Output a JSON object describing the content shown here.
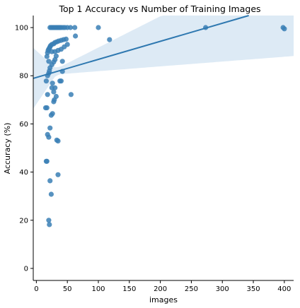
{
  "chart_data": {
    "type": "scatter",
    "title": "Top 1 Accuracy vs Number of Training Images",
    "xlabel": "images",
    "ylabel": "Accuracy (%)",
    "xlim": [
      -5,
      415
    ],
    "ylim": [
      -5,
      105
    ],
    "xticks": [
      0,
      50,
      100,
      150,
      200,
      250,
      300,
      350,
      400
    ],
    "yticks": [
      0,
      20,
      40,
      60,
      80,
      100
    ],
    "grid": false,
    "point_color": "#3a7fb5",
    "line_color": "#2e78b0",
    "band_color": "#c6dcef",
    "regression": {
      "intercept": 79.3,
      "slope": 0.075
    },
    "points": [
      [
        16,
        44.5
      ],
      [
        17,
        44.5
      ],
      [
        15,
        66.7
      ],
      [
        17,
        66.7
      ],
      [
        16,
        77.8
      ],
      [
        18,
        72.2
      ],
      [
        18,
        55.6
      ],
      [
        20,
        54.5
      ],
      [
        20,
        20
      ],
      [
        21,
        18.2
      ],
      [
        22,
        36.4
      ],
      [
        24,
        30.8
      ],
      [
        22,
        58.3
      ],
      [
        24,
        63.6
      ],
      [
        26,
        64.3
      ],
      [
        28,
        69.2
      ],
      [
        25,
        75
      ],
      [
        26,
        76.9
      ],
      [
        28,
        73.3
      ],
      [
        30,
        75
      ],
      [
        29,
        70
      ],
      [
        32,
        71.4
      ],
      [
        33,
        53.3
      ],
      [
        35,
        52.9
      ],
      [
        35,
        38.9
      ],
      [
        38,
        77.8
      ],
      [
        40,
        77.8
      ],
      [
        56,
        72.2
      ],
      [
        42,
        81.8
      ],
      [
        18,
        80
      ],
      [
        20,
        81
      ],
      [
        21,
        82
      ],
      [
        22,
        83.3
      ],
      [
        25,
        84.6
      ],
      [
        28,
        85.7
      ],
      [
        30,
        86.7
      ],
      [
        32,
        88.2
      ],
      [
        20,
        86
      ],
      [
        17,
        88
      ],
      [
        18,
        89.5
      ],
      [
        19,
        90.5
      ],
      [
        20,
        91
      ],
      [
        21,
        91.5
      ],
      [
        22,
        92
      ],
      [
        23,
        92.5
      ],
      [
        25,
        93
      ],
      [
        28,
        93.3
      ],
      [
        30,
        93.8
      ],
      [
        33,
        94.1
      ],
      [
        36,
        94.4
      ],
      [
        40,
        94.7
      ],
      [
        44,
        95
      ],
      [
        48,
        95.2
      ],
      [
        25,
        90
      ],
      [
        30,
        90
      ],
      [
        35,
        90.5
      ],
      [
        40,
        91
      ],
      [
        45,
        92
      ],
      [
        50,
        93
      ],
      [
        42,
        86
      ],
      [
        22,
        100
      ],
      [
        24,
        100
      ],
      [
        26,
        100
      ],
      [
        28,
        100
      ],
      [
        30,
        100
      ],
      [
        32,
        100
      ],
      [
        34,
        100
      ],
      [
        36,
        100
      ],
      [
        38,
        100
      ],
      [
        40,
        100
      ],
      [
        43,
        100
      ],
      [
        46,
        100
      ],
      [
        50,
        100
      ],
      [
        55,
        100
      ],
      [
        62,
        100
      ],
      [
        63,
        96.5
      ],
      [
        100,
        100
      ],
      [
        118,
        95
      ],
      [
        273,
        100
      ],
      [
        398,
        100
      ],
      [
        400,
        99.5
      ]
    ]
  }
}
